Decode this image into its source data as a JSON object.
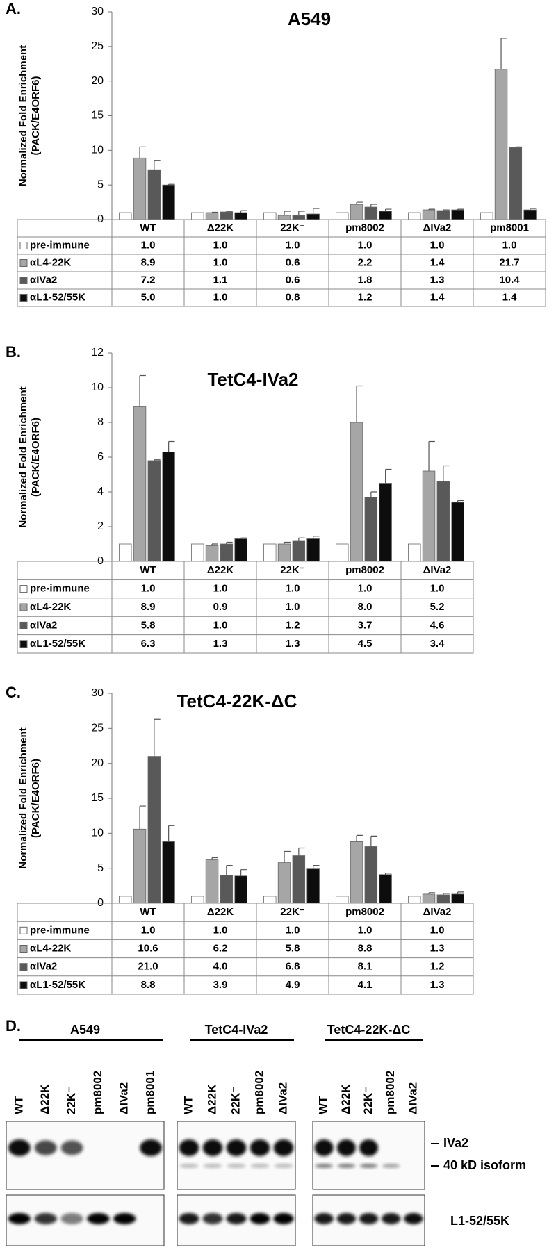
{
  "chart_data": [
    {
      "type": "bar",
      "panel_label": "A.",
      "title": "A549",
      "ylabel": [
        "Normalized Fold Enrichment",
        "(PACK/E4ORF6)"
      ],
      "categories": [
        "WT",
        "Δ22K",
        "22K⁻",
        "pm8002",
        "ΔIVa2",
        "pm8001"
      ],
      "ylim": [
        0,
        30
      ],
      "yticks": [
        0,
        5,
        10,
        15,
        20,
        25,
        30
      ],
      "series": [
        {
          "name": "pre-immune",
          "color": "#ffffff",
          "values": [
            1,
            1,
            1,
            1,
            1,
            1
          ],
          "value_labels": [
            "1.0",
            "1.0",
            "1.0",
            "1.0",
            "1.0",
            "1.0"
          ],
          "errors": [
            null,
            null,
            null,
            null,
            null,
            null
          ]
        },
        {
          "name": "αL4-22K",
          "color": "#a6a6a6",
          "values": [
            8.9,
            1,
            0.6,
            2.2,
            1.4,
            21.7
          ],
          "value_labels": [
            "8.9",
            "1.0",
            "0.6",
            "2.2",
            "1.4",
            "21.7"
          ],
          "errors": [
            1.6,
            0.05,
            0.6,
            0.3,
            0.1,
            4.5
          ]
        },
        {
          "name": "αIVa2",
          "color": "#595959",
          "values": [
            7.2,
            1.1,
            0.6,
            1.8,
            1.3,
            10.4
          ],
          "value_labels": [
            "7.2",
            "1.1",
            "0.6",
            "1.8",
            "1.3",
            "10.4"
          ],
          "errors": [
            1.3,
            0.1,
            0.6,
            0.4,
            0.1,
            0.1
          ]
        },
        {
          "name": "αL1-52/55K",
          "color": "#0d0d0d",
          "values": [
            5,
            1,
            0.8,
            1.2,
            1.4,
            1.4
          ],
          "value_labels": [
            "5.0",
            "1.0",
            "0.8",
            "1.2",
            "1.4",
            "1.4"
          ],
          "errors": [
            0.1,
            0.3,
            0.8,
            0.3,
            0.1,
            0.2
          ]
        }
      ]
    },
    {
      "type": "bar",
      "panel_label": "B.",
      "title": "TetC4-IVa2",
      "ylabel": [
        "Normalized Fold Enrichment",
        "(PACK/E4ORF6)"
      ],
      "categories": [
        "WT",
        "Δ22K",
        "22K⁻",
        "pm8002",
        "ΔIVa2"
      ],
      "ylim": [
        0,
        12
      ],
      "yticks": [
        0,
        2,
        4,
        6,
        8,
        10,
        12
      ],
      "series": [
        {
          "name": "pre-immune",
          "color": "#ffffff",
          "values": [
            1,
            1,
            1,
            1,
            1
          ],
          "value_labels": [
            "1.0",
            "1.0",
            "1.0",
            "1.0",
            "1.0"
          ],
          "errors": [
            null,
            null,
            null,
            null,
            null
          ]
        },
        {
          "name": "αL4-22K",
          "color": "#a6a6a6",
          "values": [
            8.9,
            0.9,
            1,
            8,
            5.2
          ],
          "value_labels": [
            "8.9",
            "0.9",
            "1.0",
            "8.0",
            "5.2"
          ],
          "errors": [
            1.8,
            0.1,
            0.1,
            2.1,
            1.7
          ]
        },
        {
          "name": "αIVa2",
          "color": "#595959",
          "values": [
            5.8,
            1,
            1.2,
            3.7,
            4.6
          ],
          "value_labels": [
            "5.8",
            "1.0",
            "1.2",
            "3.7",
            "4.6"
          ],
          "errors": [
            0.05,
            0.1,
            0.15,
            0.3,
            0.9
          ]
        },
        {
          "name": "αL1-52/55K",
          "color": "#0d0d0d",
          "values": [
            6.3,
            1.3,
            1.3,
            4.5,
            3.4
          ],
          "value_labels": [
            "6.3",
            "1.3",
            "1.3",
            "4.5",
            "3.4"
          ],
          "errors": [
            0.6,
            0.05,
            0.15,
            0.8,
            0.1
          ]
        }
      ]
    },
    {
      "type": "bar",
      "panel_label": "C.",
      "title": "TetC4-22K-ΔC",
      "ylabel": [
        "Normalized Fold Enrichment",
        "(PACK/E4ORF6)"
      ],
      "categories": [
        "WT",
        "Δ22K",
        "22K⁻",
        "pm8002",
        "ΔIVa2"
      ],
      "ylim": [
        0,
        30
      ],
      "yticks": [
        0,
        5,
        10,
        15,
        20,
        25,
        30
      ],
      "series": [
        {
          "name": "pre-immune",
          "color": "#ffffff",
          "values": [
            1,
            1,
            1,
            1,
            1
          ],
          "value_labels": [
            "1.0",
            "1.0",
            "1.0",
            "1.0",
            "1.0"
          ],
          "errors": [
            null,
            null,
            null,
            null,
            null
          ]
        },
        {
          "name": "αL4-22K",
          "color": "#a6a6a6",
          "values": [
            10.6,
            6.2,
            5.8,
            8.8,
            1.3
          ],
          "value_labels": [
            "10.6",
            "6.2",
            "5.8",
            "8.8",
            "1.3"
          ],
          "errors": [
            3.3,
            0.3,
            1.6,
            0.9,
            0.2
          ]
        },
        {
          "name": "αIVa2",
          "color": "#595959",
          "values": [
            21,
            4,
            6.8,
            8.1,
            1.2
          ],
          "value_labels": [
            "21.0",
            "4.0",
            "6.8",
            "8.1",
            "1.2"
          ],
          "errors": [
            5.3,
            1.4,
            1.1,
            1.5,
            0.2
          ]
        },
        {
          "name": "αL1-52/55K",
          "color": "#0d0d0d",
          "values": [
            8.8,
            3.9,
            4.9,
            4.1,
            1.3
          ],
          "value_labels": [
            "8.8",
            "3.9",
            "4.9",
            "4.1",
            "1.3"
          ],
          "errors": [
            2.3,
            0.9,
            0.5,
            0.2,
            0.3
          ]
        }
      ]
    }
  ],
  "blot": {
    "panel_label": "D.",
    "groups": [
      {
        "title": "A549",
        "lanes": [
          "WT",
          "Δ22K",
          "22K⁻",
          "pm8002",
          "ΔIVa2",
          "pm8001"
        ]
      },
      {
        "title": "TetC4-IVa2",
        "lanes": [
          "WT",
          "Δ22K",
          "22K⁻",
          "pm8002",
          "ΔIVa2"
        ]
      },
      {
        "title": "TetC4-22K-ΔC",
        "lanes": [
          "WT",
          "Δ22K",
          "22K⁻",
          "pm8002",
          "ΔIVa2"
        ]
      }
    ],
    "markers": [
      "IVa2",
      "40 kD isoform",
      "L1-52/55K"
    ]
  }
}
